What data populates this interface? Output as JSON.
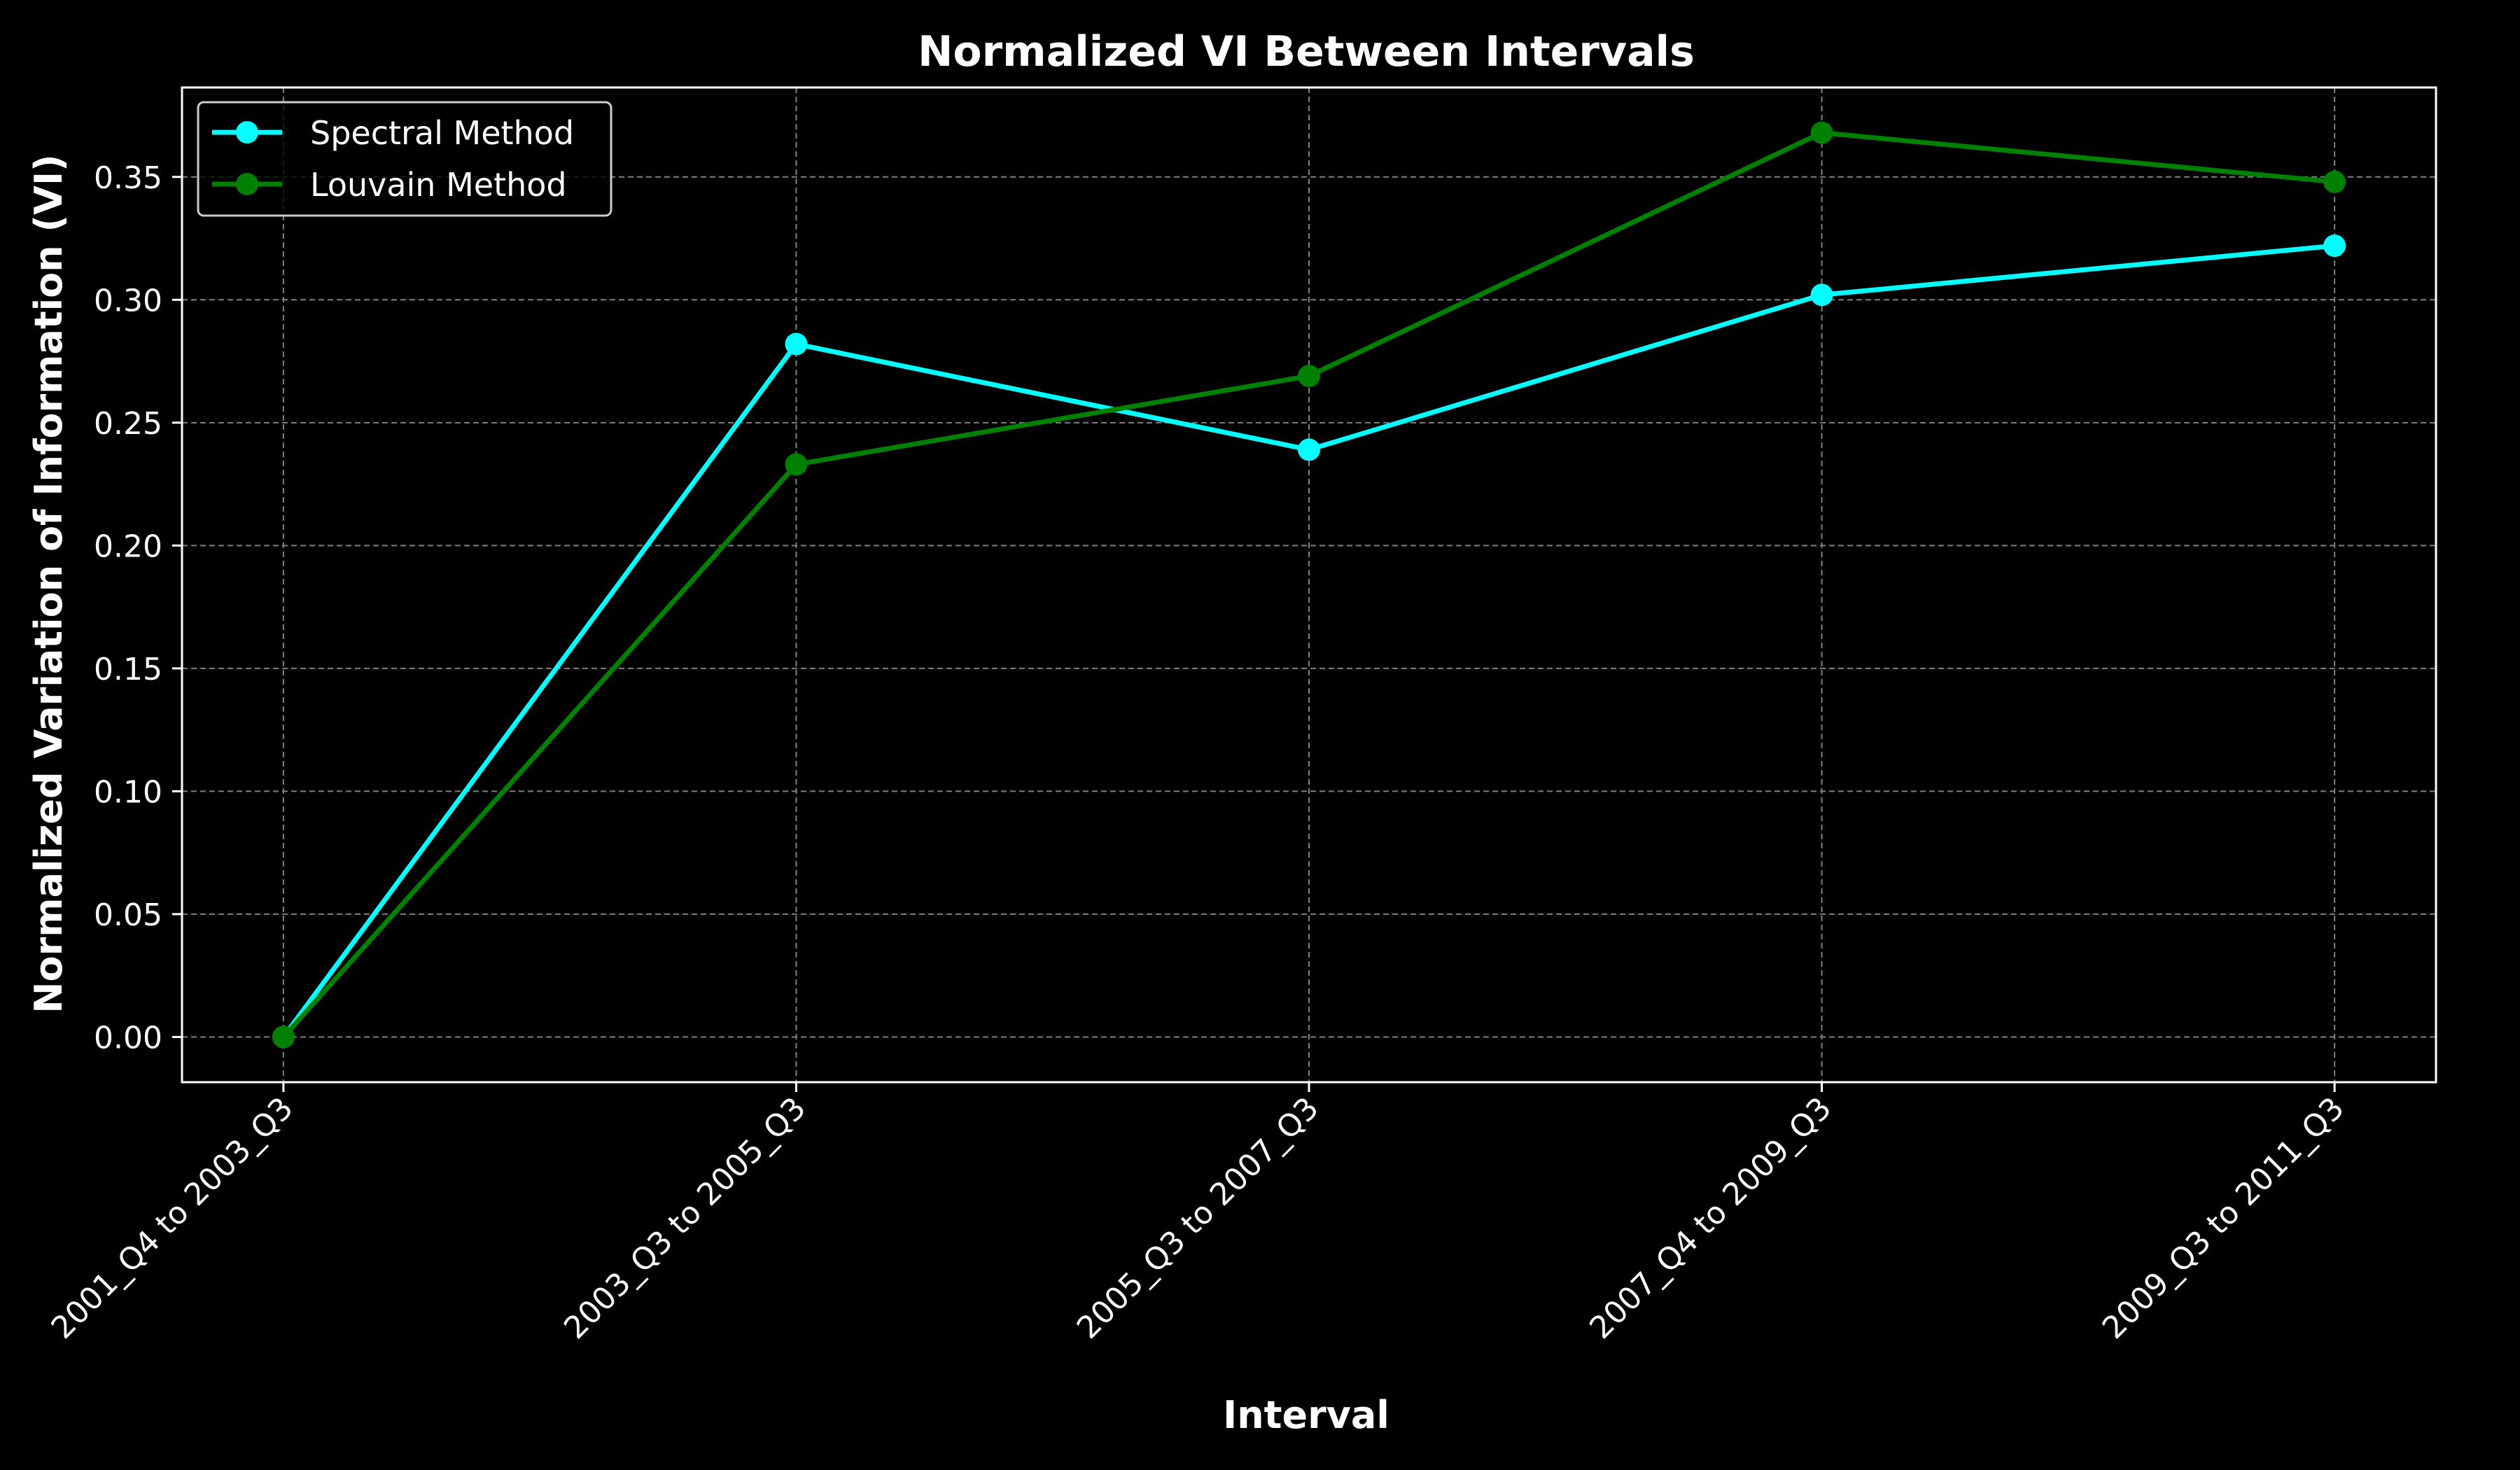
{
  "chart_data": {
    "type": "line",
    "title": "Normalized VI Between Intervals",
    "xlabel": "Interval",
    "ylabel": "Normalized Variation of Information (VI)",
    "categories": [
      "2001_Q4 to 2003_Q3",
      "2003_Q3 to 2005_Q3",
      "2005_Q3 to 2007_Q3",
      "2007_Q4 to 2009_Q3",
      "2009_Q3 to 2011_Q3"
    ],
    "series": [
      {
        "name": "Spectral Method",
        "color": "#00ffff",
        "values": [
          0.0,
          0.282,
          0.239,
          0.302,
          0.322
        ]
      },
      {
        "name": "Louvain Method",
        "color": "#008000",
        "values": [
          0.0,
          0.233,
          0.269,
          0.368,
          0.348
        ]
      }
    ],
    "ylim": [
      -0.0184,
      0.3864
    ],
    "yticks": [
      0.0,
      0.05,
      0.1,
      0.15,
      0.2,
      0.25,
      0.3,
      0.35
    ],
    "ytick_labels": [
      "0.00",
      "0.05",
      "0.10",
      "0.15",
      "0.20",
      "0.25",
      "0.30",
      "0.35"
    ],
    "grid": true,
    "legend_position": "top-left",
    "background": "#000000",
    "foreground": "#ffffff",
    "grid_color": "#808080"
  }
}
